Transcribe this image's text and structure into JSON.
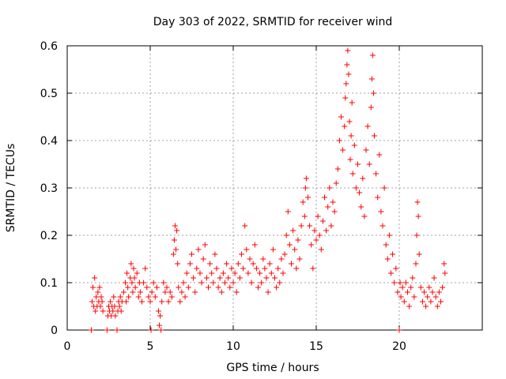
{
  "chart_data": {
    "type": "scatter",
    "title": "Day 303 of 2022, SRMTID for receiver wind",
    "xlabel": "GPS time / hours",
    "ylabel": "SRMTID / TECUs",
    "xlim": [
      0,
      25
    ],
    "ylim": [
      0,
      0.6
    ],
    "xticks": [
      0,
      5,
      10,
      15,
      20
    ],
    "yticks": [
      0,
      0.1,
      0.2,
      0.3,
      0.4,
      0.5,
      0.6
    ],
    "xtick_labels": [
      "0",
      "5",
      "10",
      "15",
      "20"
    ],
    "ytick_labels": [
      "0",
      "0.1",
      "0.2",
      "0.3",
      "0.4",
      "0.5",
      "0.6"
    ],
    "grid": true,
    "marker": "+",
    "color": "#ff0000",
    "series": [
      {
        "name": "SRMTID",
        "points": [
          [
            1.45,
            0.0
          ],
          [
            1.5,
            0.06
          ],
          [
            1.55,
            0.09
          ],
          [
            1.6,
            0.05
          ],
          [
            1.65,
            0.11
          ],
          [
            1.7,
            0.04
          ],
          [
            1.75,
            0.07
          ],
          [
            1.8,
            0.05
          ],
          [
            1.85,
            0.08
          ],
          [
            1.9,
            0.06
          ],
          [
            1.95,
            0.09
          ],
          [
            2.0,
            0.05
          ],
          [
            2.05,
            0.07
          ],
          [
            2.1,
            0.06
          ],
          [
            2.15,
            0.04
          ],
          [
            2.4,
            0.0
          ],
          [
            2.45,
            0.03
          ],
          [
            2.5,
            0.05
          ],
          [
            2.55,
            0.04
          ],
          [
            2.6,
            0.06
          ],
          [
            2.65,
            0.03
          ],
          [
            2.7,
            0.05
          ],
          [
            2.75,
            0.04
          ],
          [
            2.8,
            0.07
          ],
          [
            2.85,
            0.05
          ],
          [
            2.9,
            0.03
          ],
          [
            3.0,
            0.0
          ],
          [
            3.05,
            0.04
          ],
          [
            3.1,
            0.06
          ],
          [
            3.15,
            0.05
          ],
          [
            3.2,
            0.07
          ],
          [
            3.25,
            0.04
          ],
          [
            3.3,
            0.06
          ],
          [
            3.4,
            0.08
          ],
          [
            3.5,
            0.1
          ],
          [
            3.55,
            0.06
          ],
          [
            3.6,
            0.12
          ],
          [
            3.65,
            0.09
          ],
          [
            3.7,
            0.07
          ],
          [
            3.8,
            0.11
          ],
          [
            3.85,
            0.14
          ],
          [
            3.9,
            0.1
          ],
          [
            3.95,
            0.08
          ],
          [
            4.0,
            0.13
          ],
          [
            4.05,
            0.11
          ],
          [
            4.1,
            0.09
          ],
          [
            4.2,
            0.12
          ],
          [
            4.3,
            0.07
          ],
          [
            4.35,
            0.1
          ],
          [
            4.4,
            0.08
          ],
          [
            4.5,
            0.06
          ],
          [
            4.6,
            0.1
          ],
          [
            4.7,
            0.13
          ],
          [
            4.8,
            0.09
          ],
          [
            4.9,
            0.07
          ],
          [
            5.0,
            0.06
          ],
          [
            5.05,
            0.0
          ],
          [
            5.1,
            0.08
          ],
          [
            5.2,
            0.1
          ],
          [
            5.3,
            0.07
          ],
          [
            5.4,
            0.09
          ],
          [
            5.5,
            0.04
          ],
          [
            5.55,
            0.01
          ],
          [
            5.6,
            0.03
          ],
          [
            5.65,
            0.0
          ],
          [
            5.7,
            0.06
          ],
          [
            5.8,
            0.1
          ],
          [
            5.9,
            0.08
          ],
          [
            6.0,
            0.09
          ],
          [
            6.1,
            0.06
          ],
          [
            6.2,
            0.08
          ],
          [
            6.3,
            0.07
          ],
          [
            6.4,
            0.16
          ],
          [
            6.45,
            0.19
          ],
          [
            6.5,
            0.22
          ],
          [
            6.55,
            0.17
          ],
          [
            6.6,
            0.21
          ],
          [
            6.65,
            0.14
          ],
          [
            6.7,
            0.09
          ],
          [
            6.8,
            0.06
          ],
          [
            6.9,
            0.08
          ],
          [
            7.0,
            0.1
          ],
          [
            7.1,
            0.07
          ],
          [
            7.2,
            0.12
          ],
          [
            7.3,
            0.09
          ],
          [
            7.4,
            0.14
          ],
          [
            7.5,
            0.16
          ],
          [
            7.6,
            0.11
          ],
          [
            7.7,
            0.08
          ],
          [
            7.8,
            0.13
          ],
          [
            7.9,
            0.17
          ],
          [
            8.0,
            0.12
          ],
          [
            8.1,
            0.1
          ],
          [
            8.2,
            0.15
          ],
          [
            8.3,
            0.18
          ],
          [
            8.4,
            0.11
          ],
          [
            8.5,
            0.09
          ],
          [
            8.6,
            0.14
          ],
          [
            8.7,
            0.12
          ],
          [
            8.8,
            0.1
          ],
          [
            8.9,
            0.16
          ],
          [
            9.0,
            0.13
          ],
          [
            9.1,
            0.09
          ],
          [
            9.2,
            0.11
          ],
          [
            9.3,
            0.08
          ],
          [
            9.4,
            0.12
          ],
          [
            9.5,
            0.1
          ],
          [
            9.6,
            0.14
          ],
          [
            9.7,
            0.11
          ],
          [
            9.8,
            0.09
          ],
          [
            9.9,
            0.13
          ],
          [
            10.0,
            0.1
          ],
          [
            10.1,
            0.12
          ],
          [
            10.2,
            0.08
          ],
          [
            10.3,
            0.14
          ],
          [
            10.4,
            0.11
          ],
          [
            10.5,
            0.16
          ],
          [
            10.6,
            0.13
          ],
          [
            10.7,
            0.22
          ],
          [
            10.8,
            0.17
          ],
          [
            10.9,
            0.12
          ],
          [
            11.0,
            0.15
          ],
          [
            11.1,
            0.1
          ],
          [
            11.2,
            0.14
          ],
          [
            11.3,
            0.18
          ],
          [
            11.4,
            0.13
          ],
          [
            11.5,
            0.09
          ],
          [
            11.6,
            0.12
          ],
          [
            11.7,
            0.1
          ],
          [
            11.8,
            0.15
          ],
          [
            11.9,
            0.13
          ],
          [
            12.0,
            0.11
          ],
          [
            12.1,
            0.08
          ],
          [
            12.2,
            0.14
          ],
          [
            12.3,
            0.12
          ],
          [
            12.4,
            0.17
          ],
          [
            12.5,
            0.11
          ],
          [
            12.6,
            0.09
          ],
          [
            12.7,
            0.13
          ],
          [
            12.8,
            0.1
          ],
          [
            12.9,
            0.15
          ],
          [
            13.0,
            0.12
          ],
          [
            13.1,
            0.16
          ],
          [
            13.2,
            0.2
          ],
          [
            13.3,
            0.25
          ],
          [
            13.4,
            0.18
          ],
          [
            13.5,
            0.14
          ],
          [
            13.6,
            0.21
          ],
          [
            13.7,
            0.17
          ],
          [
            13.8,
            0.13
          ],
          [
            13.9,
            0.19
          ],
          [
            14.0,
            0.15
          ],
          [
            14.1,
            0.22
          ],
          [
            14.2,
            0.27
          ],
          [
            14.3,
            0.24
          ],
          [
            14.35,
            0.3
          ],
          [
            14.4,
            0.32
          ],
          [
            14.5,
            0.28
          ],
          [
            14.6,
            0.22
          ],
          [
            14.7,
            0.18
          ],
          [
            14.8,
            0.13
          ],
          [
            14.9,
            0.21
          ],
          [
            15.0,
            0.19
          ],
          [
            15.1,
            0.24
          ],
          [
            15.2,
            0.2
          ],
          [
            15.3,
            0.17
          ],
          [
            15.4,
            0.23
          ],
          [
            15.5,
            0.28
          ],
          [
            15.6,
            0.21
          ],
          [
            15.7,
            0.26
          ],
          [
            15.8,
            0.3
          ],
          [
            15.9,
            0.22
          ],
          [
            16.0,
            0.27
          ],
          [
            16.1,
            0.25
          ],
          [
            16.2,
            0.31
          ],
          [
            16.3,
            0.34
          ],
          [
            16.4,
            0.4
          ],
          [
            16.5,
            0.45
          ],
          [
            16.6,
            0.38
          ],
          [
            16.7,
            0.43
          ],
          [
            16.75,
            0.49
          ],
          [
            16.8,
            0.52
          ],
          [
            16.85,
            0.56
          ],
          [
            16.9,
            0.59
          ],
          [
            16.95,
            0.54
          ],
          [
            17.0,
            0.44
          ],
          [
            17.05,
            0.36
          ],
          [
            17.1,
            0.41
          ],
          [
            17.15,
            0.48
          ],
          [
            17.2,
            0.33
          ],
          [
            17.3,
            0.39
          ],
          [
            17.4,
            0.3
          ],
          [
            17.5,
            0.35
          ],
          [
            17.6,
            0.29
          ],
          [
            17.7,
            0.26
          ],
          [
            17.8,
            0.32
          ],
          [
            17.9,
            0.24
          ],
          [
            18.0,
            0.38
          ],
          [
            18.1,
            0.43
          ],
          [
            18.2,
            0.35
          ],
          [
            18.3,
            0.47
          ],
          [
            18.35,
            0.53
          ],
          [
            18.4,
            0.58
          ],
          [
            18.45,
            0.5
          ],
          [
            18.5,
            0.41
          ],
          [
            18.6,
            0.33
          ],
          [
            18.7,
            0.28
          ],
          [
            18.8,
            0.37
          ],
          [
            18.9,
            0.25
          ],
          [
            19.0,
            0.22
          ],
          [
            19.1,
            0.3
          ],
          [
            19.2,
            0.18
          ],
          [
            19.3,
            0.15
          ],
          [
            19.4,
            0.2
          ],
          [
            19.5,
            0.12
          ],
          [
            19.6,
            0.16
          ],
          [
            19.7,
            0.1
          ],
          [
            19.8,
            0.13
          ],
          [
            19.9,
            0.08
          ],
          [
            20.0,
            0.0
          ],
          [
            20.05,
            0.1
          ],
          [
            20.1,
            0.07
          ],
          [
            20.2,
            0.09
          ],
          [
            20.3,
            0.06
          ],
          [
            20.4,
            0.1
          ],
          [
            20.5,
            0.08
          ],
          [
            20.6,
            0.05
          ],
          [
            20.7,
            0.09
          ],
          [
            20.8,
            0.11
          ],
          [
            20.9,
            0.07
          ],
          [
            21.0,
            0.14
          ],
          [
            21.05,
            0.2
          ],
          [
            21.1,
            0.27
          ],
          [
            21.15,
            0.24
          ],
          [
            21.2,
            0.16
          ],
          [
            21.3,
            0.09
          ],
          [
            21.4,
            0.06
          ],
          [
            21.5,
            0.08
          ],
          [
            21.6,
            0.05
          ],
          [
            21.7,
            0.07
          ],
          [
            21.8,
            0.09
          ],
          [
            21.9,
            0.06
          ],
          [
            22.0,
            0.08
          ],
          [
            22.1,
            0.11
          ],
          [
            22.2,
            0.07
          ],
          [
            22.3,
            0.05
          ],
          [
            22.4,
            0.08
          ],
          [
            22.5,
            0.06
          ],
          [
            22.6,
            0.09
          ],
          [
            22.7,
            0.14
          ],
          [
            22.75,
            0.12
          ]
        ]
      }
    ]
  }
}
